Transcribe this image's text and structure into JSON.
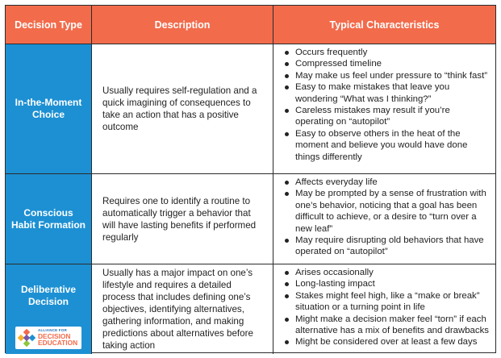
{
  "header": {
    "col1": "Decision Type",
    "col2": "Description",
    "col3": "Typical Characteristics"
  },
  "rows": [
    {
      "type": "In-the-Moment Choice",
      "description": "Usually requires self-regulation and a quick imagining of consequences to take an action that has a positive outcome",
      "characteristics": [
        "Occurs frequently",
        "Compressed timeline",
        "May make us feel under pressure to “think fast”",
        "Easy to make mistakes that leave you wondering “What was I thinking?”",
        "Careless mistakes may result if you’re operating on “autopilot”",
        "Easy to observe others in the heat of the moment and believe you would have done things differently"
      ]
    },
    {
      "type": "Conscious Habit Formation",
      "description": "Requires one to identify a routine to automatically trigger a behavior that will have lasting benefits if performed regularly",
      "characteristics": [
        "Affects everyday life",
        "May be prompted by a sense of frustration with one’s behavior, noticing that a goal has been difficult to achieve, or a desire to “turn over a new leaf”",
        "May require disrupting old behaviors that have operated on “autopilot”"
      ]
    },
    {
      "type": "Deliberative Decision",
      "description": "Usually has a major impact on one’s lifestyle and requires a detailed process that includes defining one’s objectives, identifying alternatives, gathering information, and making predictions about alternatives before taking action",
      "characteristics": [
        "Arises occasionally",
        "Long-lasting impact",
        "Stakes might feel high, like a “make or break” situation or a turning point in life",
        "Might make a decision maker feel “torn” if each alternative has a mix of benefits and drawbacks",
        "Might be considered over at least a few days"
      ]
    }
  ],
  "logo": {
    "line1": "ALLIANCE FOR",
    "line2": "DECISION",
    "line3": "EDUCATION"
  },
  "colors": {
    "header_bg": "#f26b4b",
    "type_bg": "#1d90d3",
    "border": "#2b2b2b"
  }
}
